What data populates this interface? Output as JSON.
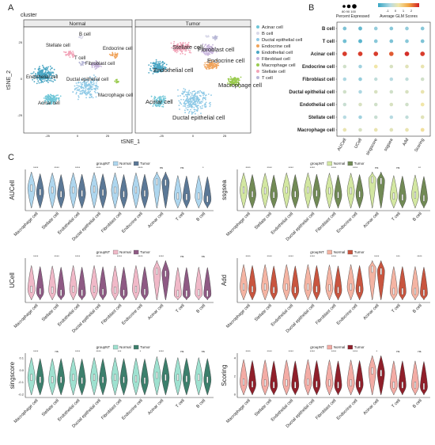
{
  "panels": {
    "A": "A",
    "B": "B",
    "C": "C"
  },
  "tsne": {
    "title": "cluster",
    "facets": [
      "Normal",
      "Tumor"
    ],
    "xlabel": "tSNE_1",
    "ylabel": "tSNE_2",
    "xticks": [
      "-25",
      "0",
      "25",
      "-25",
      "0",
      "25"
    ],
    "yticks": [
      "25",
      "0",
      "-25"
    ],
    "legend": [
      {
        "name": "Acinar cell",
        "color": "#6ec6d7"
      },
      {
        "name": "B cell",
        "color": "#d9d9e9"
      },
      {
        "name": "Ductal epithelial cell",
        "color": "#8ec9e6"
      },
      {
        "name": "Endocrine cell",
        "color": "#f0a35a"
      },
      {
        "name": "Endothelial cell",
        "color": "#4aa6c4"
      },
      {
        "name": "Fibroblast cell",
        "color": "#c7b4dc"
      },
      {
        "name": "Macrophage cell",
        "color": "#9acb4f"
      },
      {
        "name": "Stellate cell",
        "color": "#f2a4b8"
      },
      {
        "name": "T cell",
        "color": "#b7b7d6"
      }
    ],
    "normal_labels": [
      "B cell",
      "Stellate cell",
      "T cell",
      "Endocrine cell",
      "Fibroblast cell",
      "Endothelial cell",
      "Ductal epithelial cell",
      "Macrophage cell",
      "Acinar cell"
    ],
    "tumor_labels": [
      "Stellate cell",
      "Fibroblast cell",
      "Endothelial cell",
      "Endocrine cell",
      "Macrophage cell",
      "Acinar cell",
      "Ductal epithelial cell"
    ]
  },
  "chart_data": [
    {
      "type": "dotplot",
      "legend": {
        "size_title": "Percent Expressed",
        "size_ticks": [
          "80",
          "90",
          "100"
        ],
        "color_title": "Average GLM Scores",
        "color_ticks": [
          "-1",
          "0",
          "1",
          "2"
        ]
      },
      "rows": [
        "B cell",
        "T cell",
        "Acinar cell",
        "Endocrine cell",
        "Fibroblast cell",
        "Ductal epithelial cell",
        "Endothelial cell",
        "Stellate cell",
        "Macrophage cell"
      ],
      "columns": [
        "AUCell",
        "UCell",
        "singscore",
        "ssgsea",
        "Add",
        "Scoring"
      ],
      "values": [
        [
          -0.6,
          -0.8,
          -0.4,
          -0.5,
          -0.4,
          -0.5
        ],
        [
          -0.7,
          -0.9,
          -0.5,
          -0.6,
          -0.5,
          -0.6
        ],
        [
          2.2,
          2.2,
          2.2,
          2.0,
          2.3,
          2.2
        ],
        [
          0.2,
          -0.3,
          0.6,
          0.3,
          0.4,
          0.5
        ],
        [
          -0.2,
          -0.4,
          0.0,
          -0.1,
          0.0,
          0.2
        ],
        [
          0.2,
          -0.2,
          0.3,
          0.2,
          0.3,
          0.5
        ],
        [
          0.1,
          0.3,
          0.2,
          0.3,
          0.2,
          0.6
        ],
        [
          -0.1,
          -0.3,
          0.1,
          -0.1,
          0.0,
          0.4
        ],
        [
          0.5,
          0.3,
          0.5,
          0.4,
          0.5,
          0.7
        ]
      ]
    },
    {
      "type": "violin",
      "ylabel": "AUCell",
      "legend_title": "groupNT",
      "legend_entries": [
        "Normal",
        "Tumor"
      ],
      "colors": [
        "#aed6ee",
        "#5b7896"
      ],
      "categories": [
        "Macrophage cell",
        "Stellate cell",
        "Endothelial cell",
        "Ductal epithelial cell",
        "Fibroblast cell",
        "Endocrine cell",
        "Acinar cell",
        "T cell",
        "B cell"
      ],
      "signif": [
        "****",
        "****",
        "****",
        "****",
        "****",
        "****",
        "ns",
        "ns",
        "*"
      ],
      "medians": [
        [
          0.55,
          0.45
        ],
        [
          0.5,
          0.4
        ],
        [
          0.5,
          0.42
        ],
        [
          0.52,
          0.44
        ],
        [
          0.5,
          0.4
        ],
        [
          0.5,
          0.42
        ],
        [
          0.7,
          0.68
        ],
        [
          0.35,
          0.33
        ],
        [
          0.35,
          0.28
        ]
      ]
    },
    {
      "type": "violin",
      "ylabel": "ssgsea",
      "legend_title": "groupNT",
      "legend_entries": [
        "Normal",
        "Tumor"
      ],
      "colors": [
        "#d3e7a2",
        "#718a55"
      ],
      "categories": [
        "Macrophage cell",
        "Stellate cell",
        "Endothelial cell",
        "Ductal epithelial cell",
        "Fibroblast cell",
        "Endocrine cell",
        "Acinar cell",
        "T cell",
        "B cell"
      ],
      "signif": [
        "****",
        "****",
        "****",
        "****",
        "****",
        "****",
        "ns",
        "ns",
        "**"
      ],
      "medians": [
        [
          0.5,
          0.4
        ],
        [
          0.48,
          0.38
        ],
        [
          0.5,
          0.4
        ],
        [
          0.5,
          0.42
        ],
        [
          0.48,
          0.38
        ],
        [
          0.48,
          0.4
        ],
        [
          0.75,
          0.72
        ],
        [
          0.35,
          0.32
        ],
        [
          0.38,
          0.3
        ]
      ]
    },
    {
      "type": "violin",
      "ylabel": "UCell",
      "legend_title": "groupNT",
      "legend_entries": [
        "Normal",
        "Tumor"
      ],
      "colors": [
        "#f0b9c8",
        "#8e5a84"
      ],
      "categories": [
        "Macrophage cell",
        "Stellate cell",
        "Endothelial cell",
        "Ductal epithelial cell",
        "Fibroblast cell",
        "Endocrine cell",
        "Acinar cell",
        "T cell",
        "B cell"
      ],
      "signif": [
        "****",
        "****",
        "****",
        "****",
        "****",
        "****",
        "****",
        "ns",
        "ns"
      ],
      "medians": [
        [
          0.3,
          0.25
        ],
        [
          0.28,
          0.22
        ],
        [
          0.3,
          0.22
        ],
        [
          0.3,
          0.24
        ],
        [
          0.28,
          0.22
        ],
        [
          0.3,
          0.24
        ],
        [
          0.7,
          0.65
        ],
        [
          0.2,
          0.2
        ],
        [
          0.22,
          0.2
        ]
      ]
    },
    {
      "type": "violin",
      "ylabel": "Add",
      "legend_title": "groupNT",
      "legend_entries": [
        "Normal",
        "Tumor"
      ],
      "colors": [
        "#f4b4a3",
        "#c8553f"
      ],
      "categories": [
        "Macrophage cell",
        "Stellate cell",
        "Endothelial cell",
        "Ductal epithelial cell",
        "Fibroblast cell",
        "Endocrine cell",
        "Acinar cell",
        "T cell",
        "B cell"
      ],
      "signif": [
        "****",
        "****",
        "****",
        "****",
        "****",
        "****",
        "****",
        "***",
        "****"
      ],
      "medians": [
        [
          0.35,
          0.3
        ],
        [
          0.35,
          0.28
        ],
        [
          0.35,
          0.28
        ],
        [
          0.35,
          0.3
        ],
        [
          0.33,
          0.28
        ],
        [
          0.35,
          0.3
        ],
        [
          0.75,
          0.7
        ],
        [
          0.25,
          0.25
        ],
        [
          0.25,
          0.22
        ]
      ]
    },
    {
      "type": "violin",
      "ylabel": "singscore",
      "legend_title": "groupNT",
      "legend_entries": [
        "Normal",
        "Tumor"
      ],
      "colors": [
        "#9fe1d0",
        "#3c7f6c"
      ],
      "yticks": [
        "0.1",
        "0.0",
        "-0.1",
        "-0.2"
      ],
      "categories": [
        "Macrophage cell",
        "Stellate cell",
        "Endothelial cell",
        "Ductal epithelial cell",
        "Fibroblast cell",
        "Endocrine cell",
        "Acinar cell",
        "T cell",
        "B cell"
      ],
      "signif": [
        "****",
        "ns",
        "****",
        "****",
        "***",
        "*",
        "****",
        "ns",
        "ns"
      ],
      "medians": [
        [
          0.45,
          0.4
        ],
        [
          0.4,
          0.4
        ],
        [
          0.45,
          0.38
        ],
        [
          0.45,
          0.4
        ],
        [
          0.45,
          0.4
        ],
        [
          0.42,
          0.38
        ],
        [
          0.5,
          0.45
        ],
        [
          0.45,
          0.42
        ],
        [
          0.45,
          0.4
        ]
      ]
    },
    {
      "type": "violin",
      "ylabel": "Scoring",
      "legend_title": "groupNT",
      "legend_entries": [
        "Normal",
        "Tumor"
      ],
      "colors": [
        "#f3aca5",
        "#8f1f2a"
      ],
      "yticks": [
        "4",
        "2",
        "0"
      ],
      "categories": [
        "Macrophage cell",
        "Stellate cell",
        "Endothelial cell",
        "Ductal epithelial cell",
        "Fibroblast cell",
        "Endocrine cell",
        "Acinar cell",
        "T cell",
        "B cell"
      ],
      "signif": [
        "****",
        "****",
        "****",
        "****",
        "****",
        "****",
        "*",
        "ns",
        "ns"
      ],
      "medians": [
        [
          0.35,
          0.3
        ],
        [
          0.33,
          0.28
        ],
        [
          0.33,
          0.28
        ],
        [
          0.35,
          0.3
        ],
        [
          0.33,
          0.28
        ],
        [
          0.33,
          0.3
        ],
        [
          0.6,
          0.55
        ],
        [
          0.28,
          0.28
        ],
        [
          0.28,
          0.25
        ]
      ]
    }
  ]
}
